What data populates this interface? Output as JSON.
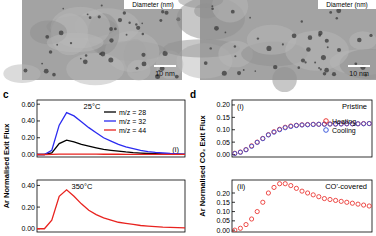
{
  "figure": {
    "images": [
      {
        "inset_label": "Diameter (nm)",
        "scale_bar": "10 nm"
      },
      {
        "inset_label": "Diameter (nm)",
        "scale_bar": "10 nm"
      }
    ],
    "panel_labels": [
      "c",
      "d"
    ]
  },
  "chart_data": [
    {
      "type": "line",
      "title": "25°C",
      "y_label": "Ar Normalised Exit Flux",
      "annotations": [
        "(i)"
      ],
      "tick_labels": "y",
      "legend": "top",
      "x": [
        0,
        1,
        2,
        3,
        4,
        5,
        6,
        7,
        8,
        9,
        10,
        11,
        12,
        13,
        14,
        15,
        16,
        17,
        18,
        19,
        20
      ],
      "xlim": [
        0,
        20
      ],
      "ylim": [
        -0.03,
        0.65
      ],
      "yticks": [
        {
          "value": 0,
          "label": "0.00"
        },
        {
          "value": 0.2,
          "label": "0.20"
        },
        {
          "value": 0.4,
          "label": "0.40"
        },
        {
          "value": 0.6,
          "label": "0.60"
        }
      ],
      "series": [
        {
          "name": "m/z = 28",
          "color": "#000000",
          "line_style": "solid",
          "values": [
            0,
            0,
            0.02,
            0.13,
            0.17,
            0.15,
            0.12,
            0.1,
            0.08,
            0.06,
            0.05,
            0.04,
            0.03,
            0.022,
            0.016,
            0.012,
            0.009,
            0.006,
            0.004,
            0.003,
            0.002
          ]
        },
        {
          "name": "m/z = 32",
          "color": "#2b2bf0",
          "line_style": "solid",
          "values": [
            0,
            0,
            0.05,
            0.35,
            0.5,
            0.46,
            0.39,
            0.32,
            0.26,
            0.2,
            0.16,
            0.12,
            0.09,
            0.07,
            0.05,
            0.035,
            0.025,
            0.018,
            0.012,
            0.008,
            0.005
          ]
        },
        {
          "name": "m/z = 44",
          "color": "#e8231f",
          "line_style": "solid",
          "values": [
            0,
            0,
            0.001,
            0.004,
            0.005,
            0.005,
            0.005,
            0.004,
            0.004,
            0.003,
            0.003,
            0.003,
            0.002,
            0.002,
            0.002,
            0.002,
            0.001,
            0.001,
            0.001,
            0.001,
            0.001
          ]
        }
      ]
    },
    {
      "type": "line",
      "title": "350°C",
      "tick_labels": "y",
      "x": [
        0,
        1,
        2,
        3,
        4,
        5,
        6,
        7,
        8,
        9,
        10,
        11,
        12,
        13,
        14,
        15,
        16,
        17,
        18,
        19,
        20
      ],
      "xlim": [
        0,
        20
      ],
      "ylim": [
        -0.03,
        0.45
      ],
      "yticks": [
        {
          "value": 0,
          "label": "0.00"
        },
        {
          "value": 0.2,
          "label": "0.20"
        },
        {
          "value": 0.4,
          "label": "0.40"
        }
      ],
      "series": [
        {
          "color": "#e8231f",
          "line_style": "solid",
          "values": [
            0,
            0,
            0.08,
            0.3,
            0.36,
            0.3,
            0.23,
            0.17,
            0.13,
            0.1,
            0.08,
            0.06,
            0.05,
            0.04,
            0.03,
            0.025,
            0.02,
            0.015,
            0.012,
            0.01,
            0.008
          ]
        }
      ]
    },
    {
      "type": "scatter",
      "title": "Pristine",
      "y_label": "Ar Normalised CO₂ Exit Flux",
      "annotations": [
        "(i)"
      ],
      "tick_labels": "y",
      "legend": "right",
      "x": [
        0,
        1,
        2,
        3,
        4,
        5,
        6,
        7,
        8,
        9,
        10,
        11,
        12,
        13,
        14,
        15,
        16,
        17,
        18,
        19,
        20,
        21,
        22,
        23,
        24
      ],
      "xlim": [
        -0.5,
        24.5
      ],
      "ylim": [
        -0.01,
        0.22
      ],
      "yticks": [
        {
          "value": 0,
          "label": "0.00"
        },
        {
          "value": 0.05,
          "label": "0.05"
        },
        {
          "value": 0.1,
          "label": "0.10"
        },
        {
          "value": 0.15,
          "label": "0.15"
        },
        {
          "value": 0.2,
          "label": "0.20"
        }
      ],
      "series": [
        {
          "name": "Heating",
          "color": "#e8231f",
          "marker": "circle",
          "values": [
            0.005,
            0.01,
            0.02,
            0.035,
            0.05,
            0.065,
            0.08,
            0.092,
            0.102,
            0.11,
            0.115,
            0.118,
            0.12,
            0.121,
            0.122,
            0.122,
            0.123,
            0.123,
            0.123,
            0.124,
            0.124,
            0.124,
            0.124,
            0.125,
            0.125
          ]
        },
        {
          "name": "Cooling",
          "color": "#2b4bd8",
          "marker": "circle",
          "values": [
            0.004,
            0.009,
            0.019,
            0.033,
            0.049,
            0.064,
            0.079,
            0.09,
            0.1,
            0.108,
            0.113,
            0.117,
            0.119,
            0.12,
            0.121,
            0.122,
            0.122,
            0.123,
            0.123,
            0.123,
            0.124,
            0.124,
            0.124,
            0.124,
            0.125
          ]
        }
      ]
    },
    {
      "type": "scatter",
      "title": "CO'-covered",
      "annotations": [
        "(ii)"
      ],
      "tick_labels": "y",
      "x": [
        0,
        1,
        2,
        3,
        4,
        5,
        6,
        7,
        8,
        9,
        10,
        11,
        12,
        13,
        14,
        15,
        16,
        17,
        18,
        19,
        20,
        21,
        22,
        23,
        24
      ],
      "xlim": [
        -0.5,
        24.5
      ],
      "ylim": [
        -0.01,
        0.27
      ],
      "yticks": [
        {
          "value": 0,
          "label": "0.00"
        },
        {
          "value": 0.05,
          "label": "0.05"
        },
        {
          "value": 0.1,
          "label": "0.10"
        },
        {
          "value": 0.15,
          "label": "0.15"
        },
        {
          "value": 0.2,
          "label": "0.20"
        }
      ],
      "series": [
        {
          "color": "#e8231f",
          "marker": "circle",
          "values": [
            0,
            0.01,
            0.03,
            0.06,
            0.1,
            0.15,
            0.2,
            0.23,
            0.25,
            0.25,
            0.24,
            0.225,
            0.21,
            0.2,
            0.19,
            0.18,
            0.17,
            0.165,
            0.16,
            0.155,
            0.15,
            0.145,
            0.14,
            0.135,
            0.13
          ]
        }
      ]
    }
  ]
}
